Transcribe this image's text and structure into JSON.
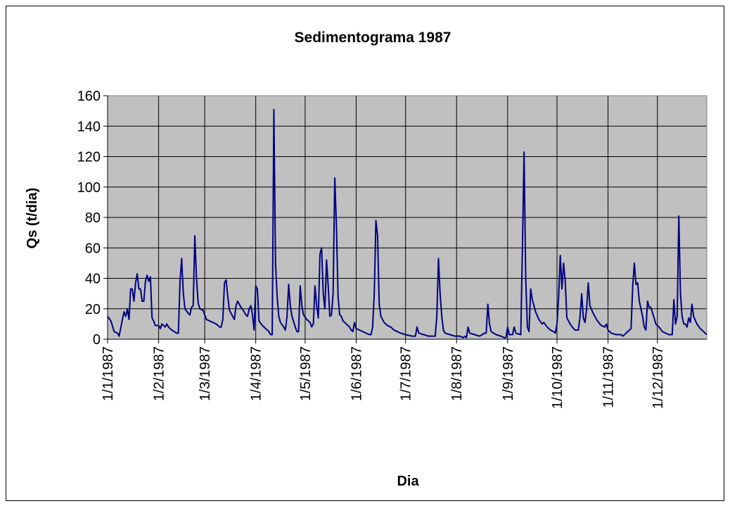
{
  "chart_data": {
    "type": "line",
    "title": "Sedimentograma 1987",
    "x_label": "Dia",
    "y_label": "Qs (t/dia)",
    "color": "#000080",
    "background": "#c0c0c0",
    "grid": true,
    "xlim": [
      "1/1/1987",
      "31/12/1987"
    ],
    "xticks": [
      "1/1/1987",
      "1/2/1987",
      "1/3/1987",
      "1/4/1987",
      "1/5/1987",
      "1/6/1987",
      "1/7/1987",
      "1/8/1987",
      "1/9/1987",
      "1/10/1987",
      "1/11/1987",
      "1/12/1987"
    ],
    "ylim": [
      0,
      160
    ],
    "yticks": [
      0,
      20,
      40,
      60,
      80,
      100,
      120,
      140,
      160
    ],
    "x": [
      "1/1/1987",
      "3/1/1987",
      "5/1/1987",
      "7/1/1987",
      "8/1/1987",
      "10/1/1987",
      "11/1/1987",
      "12/1/1987",
      "13/1/1987",
      "14/1/1987",
      "15/1/1987",
      "16/1/1987",
      "17/1/1987",
      "18/1/1987",
      "19/1/1987",
      "20/1/1987",
      "21/1/1987",
      "22/1/1987",
      "23/1/1987",
      "24/1/1987",
      "25/1/1987",
      "26/1/1987",
      "27/1/1987",
      "28/1/1987",
      "29/1/1987",
      "30/1/1987",
      "1/2/1987",
      "2/2/1987",
      "3/2/1987",
      "4/2/1987",
      "5/2/1987",
      "6/2/1987",
      "7/2/1987",
      "9/2/1987",
      "12/2/1987",
      "13/2/1987",
      "14/2/1987",
      "15/2/1987",
      "16/2/1987",
      "17/2/1987",
      "19/2/1987",
      "20/2/1987",
      "21/2/1987",
      "22/2/1987",
      "23/2/1987",
      "24/2/1987",
      "25/2/1987",
      "26/2/1987",
      "28/2/1987",
      "1/3/1987",
      "2/3/1987",
      "4/3/1987",
      "6/3/1987",
      "8/3/1987",
      "10/3/1987",
      "11/3/1987",
      "12/3/1987",
      "13/3/1987",
      "14/3/1987",
      "15/3/1987",
      "16/3/1987",
      "18/3/1987",
      "19/3/1987",
      "20/3/1987",
      "21/3/1987",
      "23/3/1987",
      "25/3/1987",
      "26/3/1987",
      "27/3/1987",
      "28/3/1987",
      "29/3/1987",
      "30/3/1987",
      "31/3/1987",
      "1/4/1987",
      "2/4/1987",
      "3/4/1987",
      "5/4/1987",
      "7/4/1987",
      "9/4/1987",
      "10/4/1987",
      "11/4/1987",
      "12/4/1987",
      "13/4/1987",
      "14/4/1987",
      "15/4/1987",
      "16/4/1987",
      "18/4/1987",
      "19/4/1987",
      "20/4/1987",
      "21/4/1987",
      "22/4/1987",
      "23/4/1987",
      "25/4/1987",
      "26/4/1987",
      "27/4/1987",
      "28/4/1987",
      "29/4/1987",
      "30/4/1987",
      "2/5/1987",
      "4/5/1987",
      "5/5/1987",
      "6/5/1987",
      "7/5/1987",
      "8/5/1987",
      "9/5/1987",
      "10/5/1987",
      "11/5/1987",
      "12/5/1987",
      "13/5/1987",
      "14/5/1987",
      "15/5/1987",
      "16/5/1987",
      "17/5/1987",
      "18/5/1987",
      "19/5/1987",
      "20/5/1987",
      "21/5/1987",
      "22/5/1987",
      "23/5/1987",
      "24/5/1987",
      "26/5/1987",
      "28/5/1987",
      "29/5/1987",
      "30/5/1987",
      "31/5/1987",
      "1/6/1987",
      "3/6/1987",
      "5/6/1987",
      "7/6/1987",
      "9/6/1987",
      "10/6/1987",
      "11/6/1987",
      "12/6/1987",
      "13/6/1987",
      "14/6/1987",
      "15/6/1987",
      "16/6/1987",
      "18/6/1987",
      "20/6/1987",
      "22/6/1987",
      "24/6/1987",
      "26/6/1987",
      "28/6/1987",
      "1/7/1987",
      "5/7/1987",
      "7/7/1987",
      "8/7/1987",
      "9/7/1987",
      "12/7/1987",
      "15/7/1987",
      "18/7/1987",
      "19/7/1987",
      "20/7/1987",
      "21/7/1987",
      "22/7/1987",
      "23/7/1987",
      "24/7/1987",
      "25/7/1987",
      "28/7/1987",
      "31/7/1987",
      "3/8/1987",
      "5/8/1987",
      "6/8/1987",
      "7/8/1987",
      "8/8/1987",
      "9/8/1987",
      "12/8/1987",
      "15/8/1987",
      "18/8/1987",
      "19/8/1987",
      "20/8/1987",
      "21/8/1987",
      "22/8/1987",
      "25/8/1987",
      "28/8/1987",
      "30/8/1987",
      "31/8/1987",
      "1/9/1987",
      "2/9/1987",
      "4/9/1987",
      "5/9/1987",
      "6/9/1987",
      "9/9/1987",
      "10/9/1987",
      "11/9/1987",
      "12/9/1987",
      "13/9/1987",
      "14/9/1987",
      "15/9/1987",
      "16/9/1987",
      "18/9/1987",
      "20/9/1987",
      "22/9/1987",
      "23/9/1987",
      "25/9/1987",
      "27/9/1987",
      "29/9/1987",
      "30/9/1987",
      "1/10/1987",
      "2/10/1987",
      "3/10/1987",
      "4/10/1987",
      "5/10/1987",
      "6/10/1987",
      "7/10/1987",
      "9/10/1987",
      "11/10/1987",
      "12/10/1987",
      "14/10/1987",
      "15/10/1987",
      "16/10/1987",
      "17/10/1987",
      "18/10/1987",
      "19/10/1987",
      "20/10/1987",
      "21/10/1987",
      "23/10/1987",
      "25/10/1987",
      "27/10/1987",
      "28/10/1987",
      "30/10/1987",
      "31/10/1987",
      "1/11/1987",
      "3/11/1987",
      "6/11/1987",
      "9/11/1987",
      "10/11/1987",
      "12/11/1987",
      "14/11/1987",
      "15/11/1987",
      "16/11/1987",
      "17/11/1987",
      "18/11/1987",
      "19/11/1987",
      "20/11/1987",
      "22/11/1987",
      "23/11/1987",
      "24/11/1987",
      "25/11/1987",
      "26/11/1987",
      "27/11/1987",
      "29/11/1987",
      "30/11/1987",
      "2/12/1987",
      "4/12/1987",
      "6/12/1987",
      "8/12/1987",
      "10/12/1987",
      "11/12/1987",
      "12/12/1987",
      "13/12/1987",
      "14/12/1987",
      "15/12/1987",
      "16/12/1987",
      "17/12/1987",
      "18/12/1987",
      "19/12/1987",
      "20/12/1987",
      "21/12/1987",
      "22/12/1987",
      "23/12/1987",
      "25/12/1987",
      "27/12/1987",
      "29/12/1987",
      "31/12/1987"
    ],
    "values": [
      15,
      12,
      5,
      4,
      2,
      13,
      18,
      15,
      20,
      13,
      33,
      33,
      25,
      37,
      43,
      33,
      33,
      25,
      25,
      38,
      42,
      38,
      41,
      14,
      12,
      9,
      9,
      7,
      10,
      9,
      8,
      10,
      8,
      6,
      4,
      4,
      38,
      53,
      30,
      20,
      17,
      16,
      21,
      22,
      68,
      40,
      24,
      20,
      19,
      16,
      13,
      12,
      11,
      10,
      8,
      8,
      13,
      37,
      39,
      28,
      19,
      15,
      13,
      22,
      25,
      21,
      18,
      16,
      15,
      20,
      22,
      16,
      6,
      35,
      33,
      12,
      9,
      7,
      5,
      3,
      3,
      151,
      50,
      28,
      15,
      11,
      8,
      6,
      15,
      36,
      22,
      15,
      8,
      5,
      5,
      35,
      22,
      16,
      13,
      11,
      8,
      10,
      35,
      22,
      14,
      56,
      60,
      30,
      20,
      52,
      35,
      15,
      16,
      30,
      106,
      75,
      28,
      16,
      15,
      12,
      10,
      8,
      6,
      5,
      11,
      7,
      6,
      5,
      4,
      3,
      3,
      8,
      30,
      78,
      68,
      23,
      15,
      11,
      9,
      8,
      6,
      5,
      4,
      3,
      2,
      2,
      8,
      4,
      3,
      2,
      2,
      2,
      15,
      53,
      30,
      15,
      6,
      4,
      3,
      2,
      2,
      1,
      2,
      1,
      8,
      4,
      3,
      2,
      4,
      4,
      23,
      10,
      5,
      3,
      2,
      1,
      1,
      8,
      3,
      3,
      8,
      4,
      3,
      60,
      123,
      40,
      8,
      5,
      33,
      26,
      18,
      13,
      10,
      11,
      8,
      6,
      5,
      4,
      10,
      28,
      55,
      33,
      50,
      38,
      14,
      10,
      7,
      6,
      6,
      15,
      30,
      14,
      11,
      20,
      37,
      22,
      17,
      13,
      10,
      9,
      8,
      10,
      6,
      4,
      3,
      3,
      2,
      4,
      6,
      7,
      35,
      50,
      36,
      37,
      25,
      15,
      8,
      6,
      25,
      21,
      21,
      14,
      10,
      8,
      5,
      4,
      3,
      3,
      26,
      10,
      15,
      81,
      30,
      15,
      10,
      10,
      8,
      14,
      11,
      23,
      15,
      10,
      7,
      5,
      3
    ]
  }
}
